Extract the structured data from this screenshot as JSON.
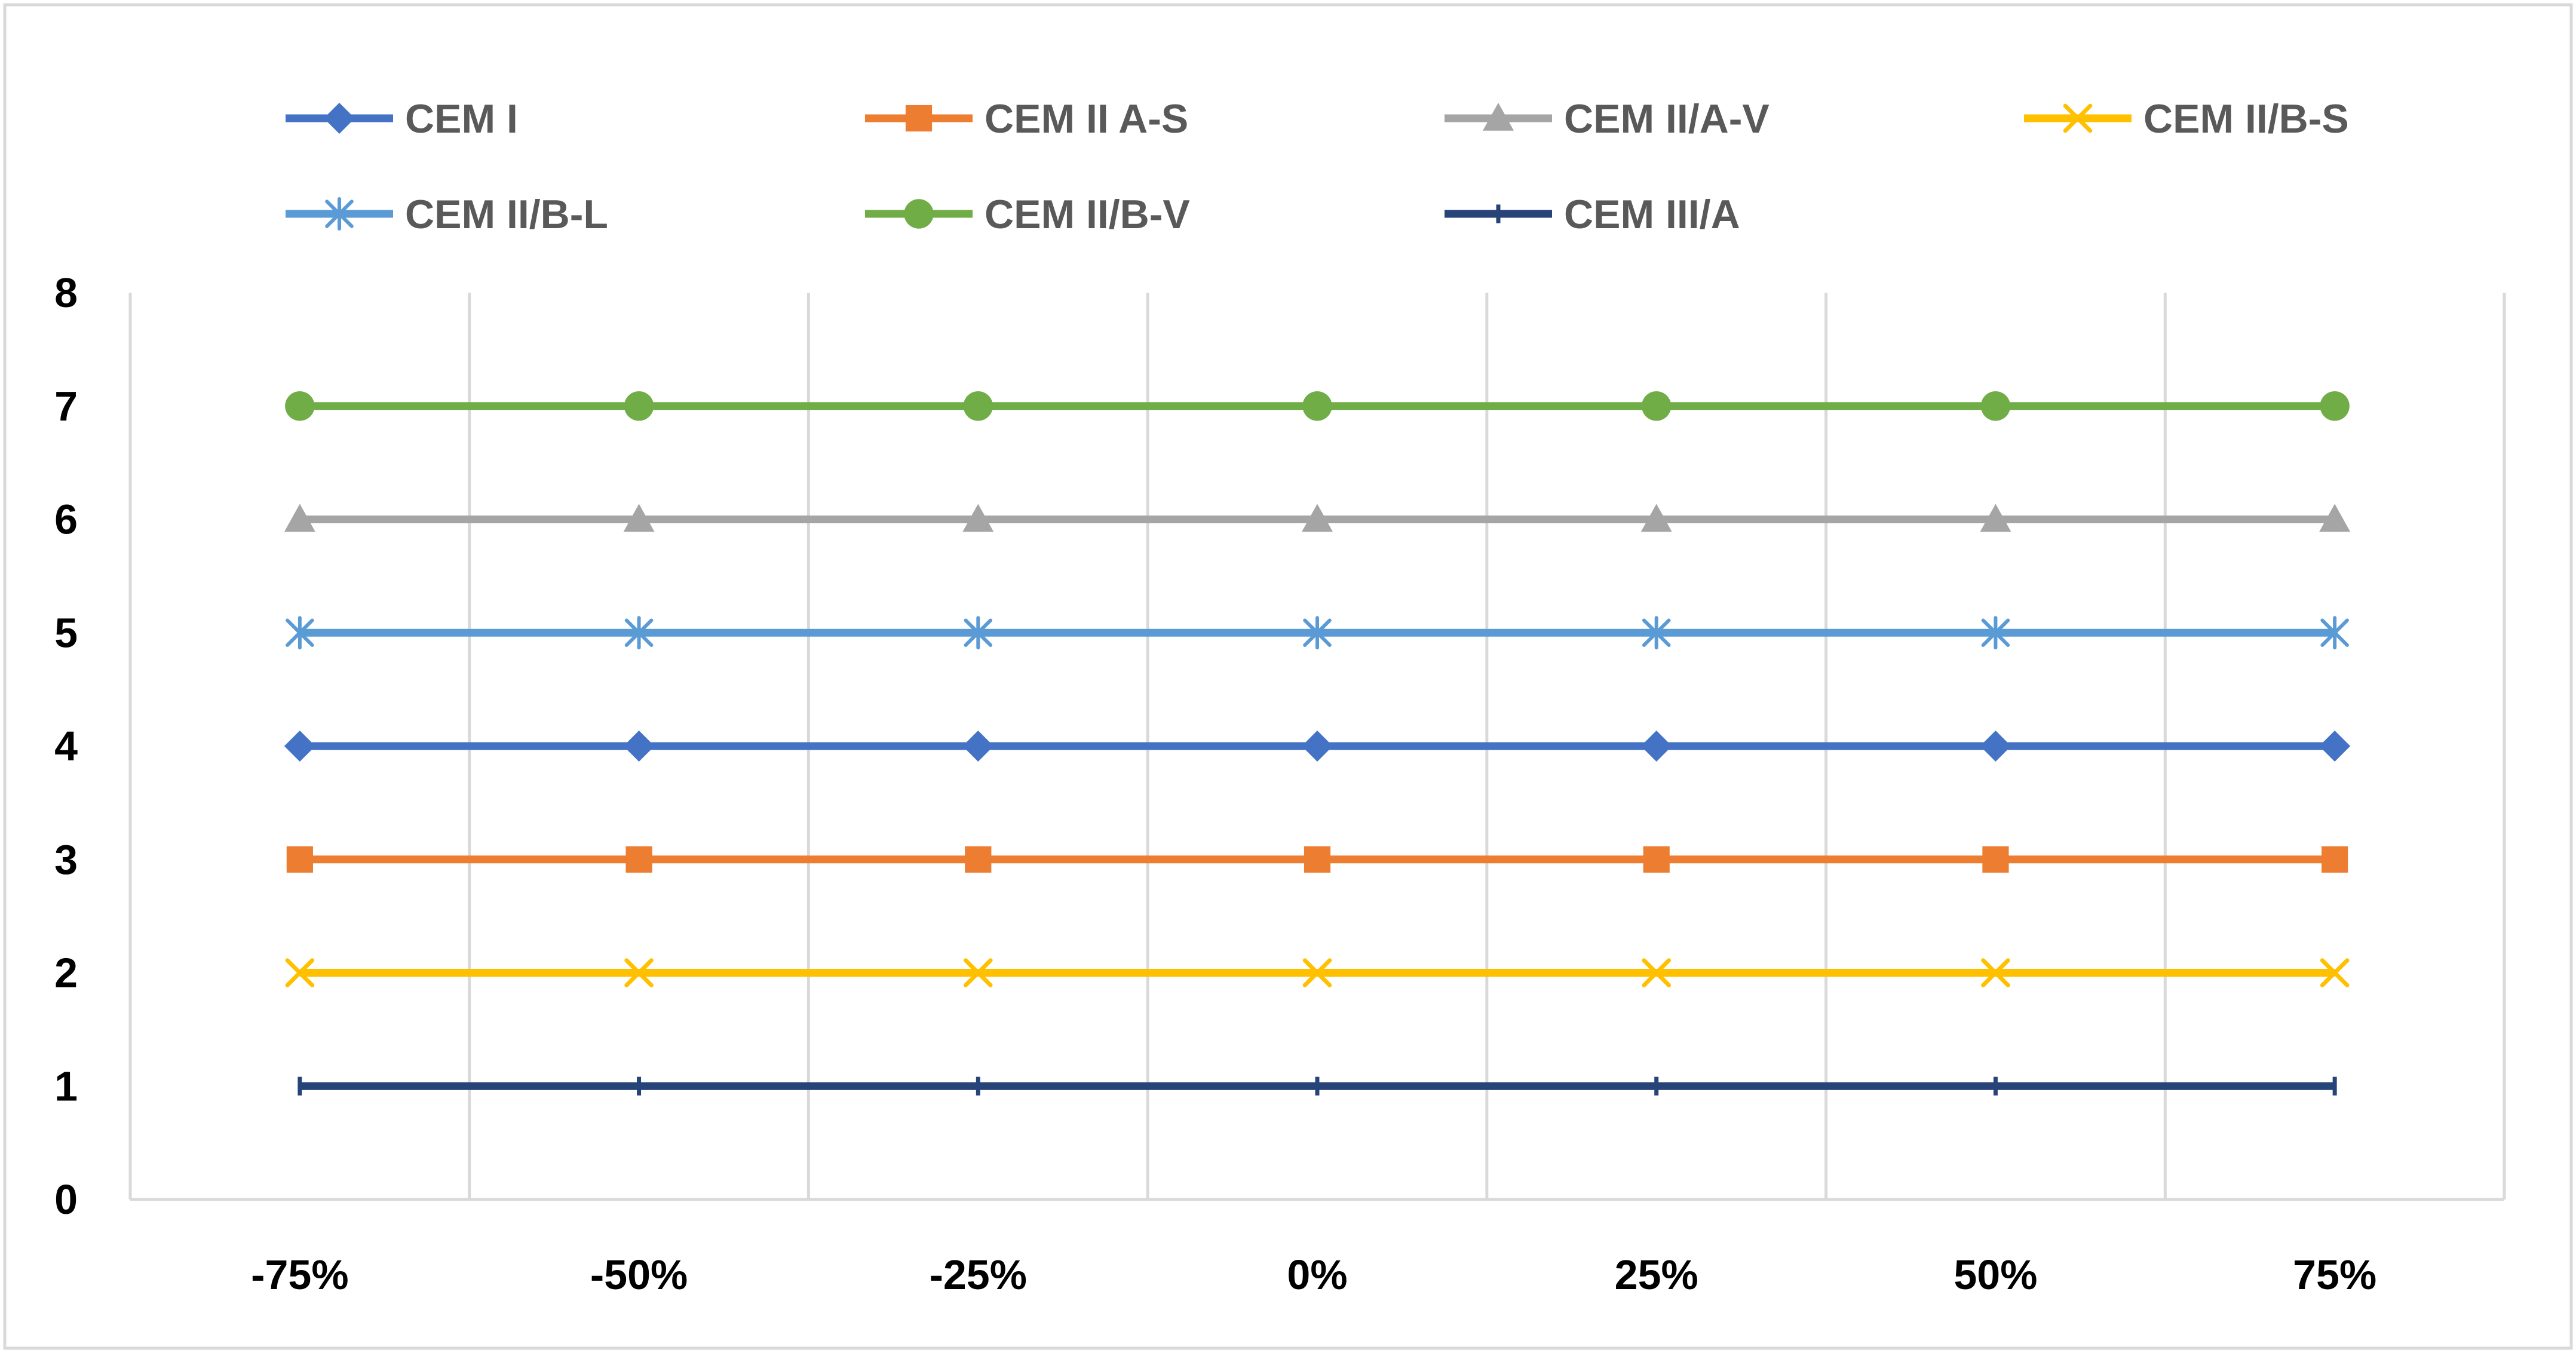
{
  "chart_data": {
    "type": "line",
    "title": "",
    "xlabel": "",
    "ylabel": "",
    "categories": [
      "-75%",
      "-50%",
      "-25%",
      "0%",
      "25%",
      "50%",
      "75%"
    ],
    "ylim": [
      0,
      8
    ],
    "yticks": [
      "0",
      "1",
      "2",
      "3",
      "4",
      "5",
      "6",
      "7",
      "8"
    ],
    "grid": "vertical",
    "legend_position": "top",
    "series": [
      {
        "name": "CEM I",
        "color": "#4472C4",
        "marker": "diamond",
        "values": [
          4,
          4,
          4,
          4,
          4,
          4,
          4
        ]
      },
      {
        "name": "CEM II A-S",
        "color": "#ED7D31",
        "marker": "square",
        "values": [
          3,
          3,
          3,
          3,
          3,
          3,
          3
        ]
      },
      {
        "name": "CEM II/A-V",
        "color": "#A5A5A5",
        "marker": "triangle",
        "values": [
          6,
          6,
          6,
          6,
          6,
          6,
          6
        ]
      },
      {
        "name": "CEM II/B-S",
        "color": "#FFC000",
        "marker": "x",
        "values": [
          2,
          2,
          2,
          2,
          2,
          2,
          2
        ]
      },
      {
        "name": "CEM II/B-L",
        "color": "#5B9BD5",
        "marker": "star",
        "values": [
          5,
          5,
          5,
          5,
          5,
          5,
          5
        ]
      },
      {
        "name": "CEM II/B-V",
        "color": "#70AD47",
        "marker": "circle",
        "values": [
          7,
          7,
          7,
          7,
          7,
          7,
          7
        ]
      },
      {
        "name": "CEM III/A",
        "color": "#264478",
        "marker": "plus",
        "values": [
          1,
          1,
          1,
          1,
          1,
          1,
          1
        ]
      }
    ]
  }
}
